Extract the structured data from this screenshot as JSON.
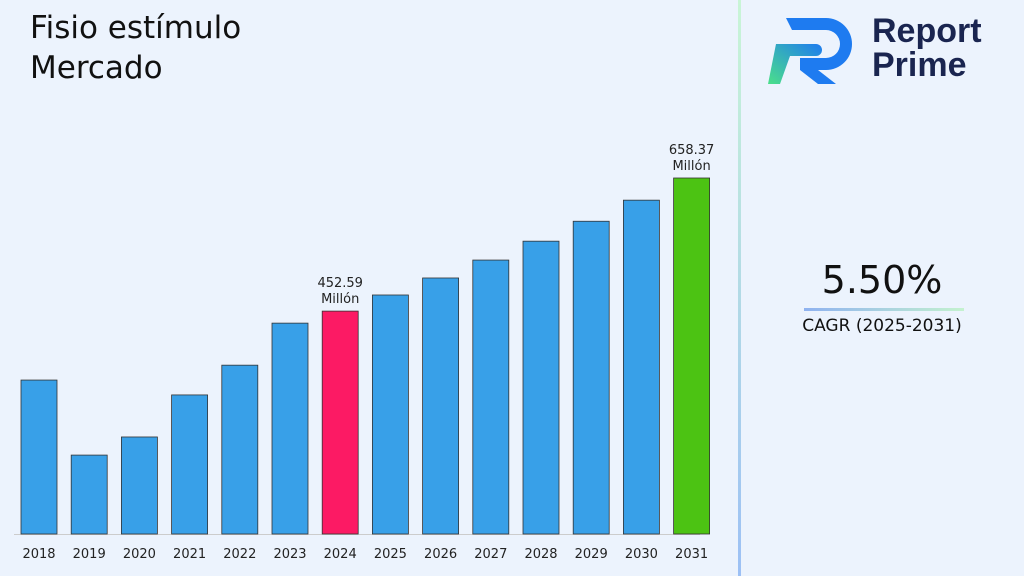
{
  "title": "Fisio estímulo Mercado",
  "logo": {
    "line1": "Report",
    "line2": "Prime"
  },
  "cagr": {
    "value": "5.50%",
    "label": "CAGR (2025-2031)"
  },
  "colors": {
    "default": "#38a0e8",
    "highlight_2024": "#fc1a64",
    "highlight_2031": "#4cc313"
  },
  "chart_data": {
    "type": "bar",
    "categories": [
      "2018",
      "2019",
      "2020",
      "2021",
      "2022",
      "2023",
      "2024",
      "2025",
      "2026",
      "2027",
      "2028",
      "2029",
      "2030",
      "2031"
    ],
    "values": [
      346,
      230,
      258,
      323,
      369,
      434,
      452.59,
      477.5,
      503.8,
      531.5,
      560.7,
      591.5,
      624.1,
      658.37
    ],
    "data_labels": [
      {
        "index": 6,
        "value": "452.59",
        "unit": "Millón"
      },
      {
        "index": 13,
        "value": "658.37",
        "unit": "Millón"
      }
    ],
    "title": "",
    "xlabel": "",
    "ylabel": "",
    "grid": false
  }
}
